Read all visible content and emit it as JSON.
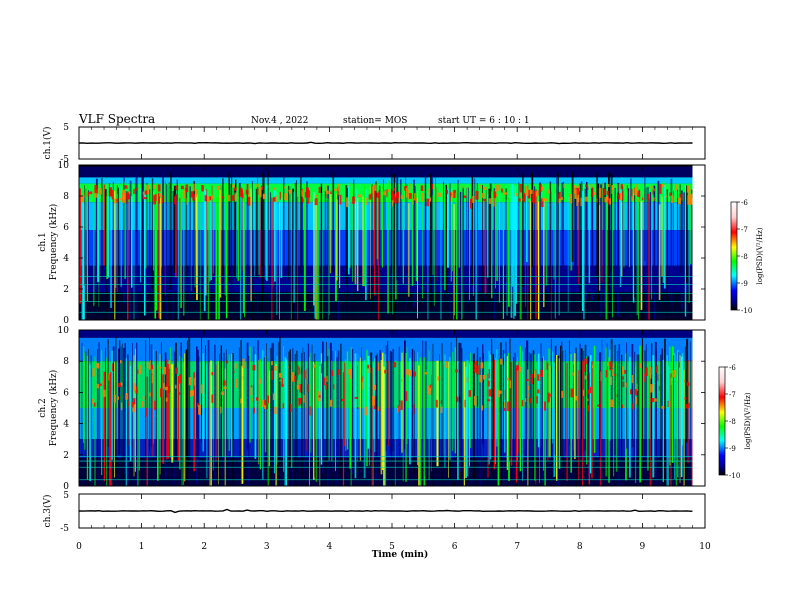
{
  "header": {
    "title": "VLF Spectra",
    "date": "Nov.4 , 2022",
    "station": "station= MOS",
    "start": "start UT = 6 : 10 : 1"
  },
  "colorbar": {
    "label": "log(PSD)(V²/Hz)",
    "ticks": [
      "-6",
      "-7",
      "-8",
      "-9",
      "-10"
    ],
    "colors": [
      "#ffffff",
      "#ff0000",
      "#ffff00",
      "#00ff00",
      "#00ffff",
      "#0000ff",
      "#000080",
      "#000000"
    ]
  },
  "chart_data": [
    {
      "type": "line",
      "name": "ch1-waveform",
      "ylabel": "ch.1(V)",
      "ylim": [
        -5,
        5
      ],
      "yticks": [
        "5",
        "-5"
      ],
      "xlim": [
        0,
        10
      ],
      "x": [
        0,
        10
      ],
      "values": [
        0,
        0
      ]
    },
    {
      "type": "heatmap",
      "name": "ch1-spectrogram",
      "ylabel": "ch.1 Frequency (kHz)",
      "ylim": [
        0,
        10
      ],
      "yticks": [
        "0",
        "2",
        "4",
        "6",
        "8",
        "10"
      ],
      "xlim": [
        0,
        10
      ],
      "zlim": [
        -10,
        -6
      ],
      "data_extent_min": 9.8
    },
    {
      "type": "heatmap",
      "name": "ch2-spectrogram",
      "ylabel": "ch.2 Frequency (kHz)",
      "ylim": [
        0,
        10
      ],
      "yticks": [
        "0",
        "2",
        "4",
        "6",
        "8",
        "10"
      ],
      "xlim": [
        0,
        10
      ],
      "zlim": [
        -10,
        -6
      ],
      "data_extent_min": 9.8
    },
    {
      "type": "line",
      "name": "ch3-waveform",
      "ylabel": "ch.3(V)",
      "ylim": [
        -5,
        5
      ],
      "yticks": [
        "5",
        "-5"
      ],
      "xlim": [
        0,
        10
      ],
      "x": [
        0,
        10
      ],
      "values": [
        0,
        0
      ]
    }
  ],
  "xaxis": {
    "label": "Time (min)",
    "ticks": [
      "0",
      "1",
      "2",
      "3",
      "4",
      "5",
      "6",
      "7",
      "8",
      "9",
      "10"
    ]
  }
}
